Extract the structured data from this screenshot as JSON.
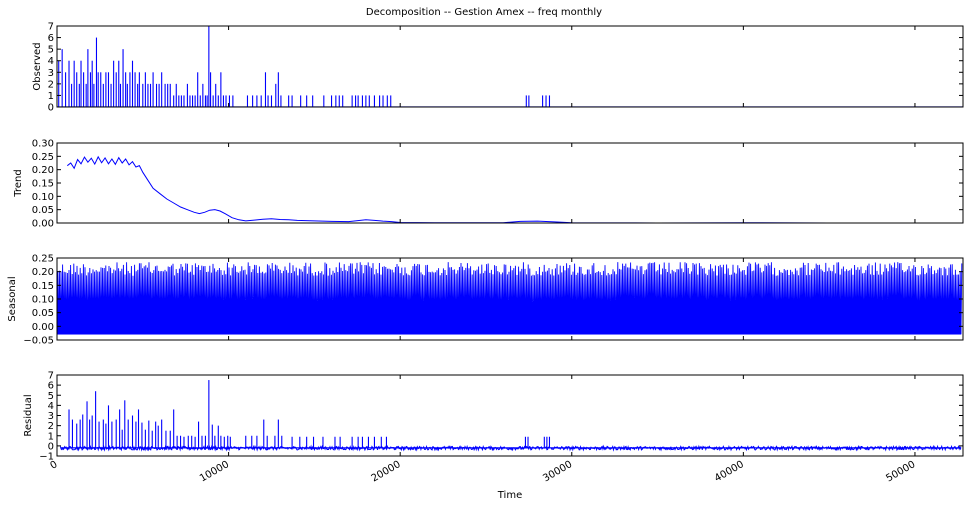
{
  "chart_data": {
    "type": "line",
    "title": "Decomposition -- Gestion Amex -- freq monthly",
    "xlabel": "Time",
    "xlim": [
      0,
      52800
    ],
    "xticks": [
      0,
      10000,
      20000,
      30000,
      40000,
      50000
    ],
    "xtick_labels": [
      "0",
      "10000",
      "20000",
      "30000",
      "40000",
      "50000"
    ],
    "line_color": "#0000ff",
    "panels": [
      {
        "name": "observed",
        "ylabel": "Observed",
        "ylim": [
          0,
          7
        ],
        "yticks": [
          0,
          1,
          2,
          3,
          4,
          5,
          6,
          7
        ],
        "ytick_labels": [
          "0",
          "1",
          "2",
          "3",
          "4",
          "5",
          "6",
          "7"
        ],
        "style": "spikes",
        "baseline": 0,
        "spikes": [
          [
            100,
            4
          ],
          [
            300,
            5
          ],
          [
            500,
            3
          ],
          [
            700,
            4
          ],
          [
            850,
            2
          ],
          [
            1000,
            4
          ],
          [
            1150,
            3
          ],
          [
            1300,
            2
          ],
          [
            1400,
            4
          ],
          [
            1550,
            3
          ],
          [
            1700,
            2
          ],
          [
            1800,
            5
          ],
          [
            1950,
            3
          ],
          [
            2050,
            4
          ],
          [
            2150,
            2
          ],
          [
            2300,
            6
          ],
          [
            2400,
            3
          ],
          [
            2550,
            3
          ],
          [
            2700,
            2
          ],
          [
            2850,
            3
          ],
          [
            3000,
            3
          ],
          [
            3150,
            2
          ],
          [
            3300,
            4
          ],
          [
            3450,
            3
          ],
          [
            3600,
            4
          ],
          [
            3700,
            2
          ],
          [
            3850,
            5
          ],
          [
            4000,
            3
          ],
          [
            4100,
            2
          ],
          [
            4250,
            3
          ],
          [
            4400,
            4
          ],
          [
            4550,
            3
          ],
          [
            4700,
            2
          ],
          [
            4800,
            3
          ],
          [
            5000,
            2
          ],
          [
            5150,
            3
          ],
          [
            5300,
            2
          ],
          [
            5450,
            2
          ],
          [
            5600,
            3
          ],
          [
            5800,
            2
          ],
          [
            5950,
            2
          ],
          [
            6100,
            3
          ],
          [
            6300,
            2
          ],
          [
            6450,
            2
          ],
          [
            6600,
            2
          ],
          [
            6800,
            1
          ],
          [
            6950,
            2
          ],
          [
            7100,
            1
          ],
          [
            7250,
            1
          ],
          [
            7400,
            1
          ],
          [
            7600,
            2
          ],
          [
            7750,
            1
          ],
          [
            7900,
            1
          ],
          [
            8050,
            1
          ],
          [
            8200,
            3
          ],
          [
            8350,
            1
          ],
          [
            8500,
            2
          ],
          [
            8650,
            1
          ],
          [
            8750,
            1
          ],
          [
            8850,
            7
          ],
          [
            8950,
            3
          ],
          [
            9100,
            1
          ],
          [
            9250,
            2
          ],
          [
            9400,
            1
          ],
          [
            9550,
            3
          ],
          [
            9700,
            1
          ],
          [
            9850,
            1
          ],
          [
            10050,
            1
          ],
          [
            10250,
            1
          ],
          [
            11100,
            1
          ],
          [
            11400,
            1
          ],
          [
            11650,
            1
          ],
          [
            11900,
            1
          ],
          [
            12150,
            3
          ],
          [
            12300,
            1
          ],
          [
            12500,
            1
          ],
          [
            12750,
            2
          ],
          [
            12900,
            3
          ],
          [
            13050,
            1
          ],
          [
            13500,
            1
          ],
          [
            13700,
            1
          ],
          [
            14200,
            1
          ],
          [
            14550,
            1
          ],
          [
            14900,
            1
          ],
          [
            15550,
            1
          ],
          [
            16000,
            1
          ],
          [
            16250,
            1
          ],
          [
            16450,
            1
          ],
          [
            16650,
            1
          ],
          [
            17200,
            1
          ],
          [
            17400,
            1
          ],
          [
            17550,
            1
          ],
          [
            17800,
            1
          ],
          [
            18000,
            1
          ],
          [
            18200,
            1
          ],
          [
            18500,
            1
          ],
          [
            18800,
            1
          ],
          [
            19000,
            1
          ],
          [
            19250,
            1
          ],
          [
            19450,
            1
          ],
          [
            27350,
            1
          ],
          [
            27500,
            1
          ],
          [
            28300,
            1
          ],
          [
            28500,
            1
          ],
          [
            28700,
            1
          ]
        ]
      },
      {
        "name": "trend",
        "ylabel": "Trend",
        "ylim": [
          0,
          0.3
        ],
        "yticks": [
          0,
          0.05,
          0.1,
          0.15,
          0.2,
          0.25,
          0.3
        ],
        "ytick_labels": [
          "0.00",
          "0.05",
          "0.10",
          "0.15",
          "0.20",
          "0.25",
          "0.30"
        ],
        "style": "line",
        "x": [
          600,
          800,
          1000,
          1200,
          1400,
          1600,
          1800,
          2000,
          2200,
          2400,
          2600,
          2800,
          3000,
          3200,
          3400,
          3600,
          3800,
          4000,
          4200,
          4400,
          4600,
          4800,
          5000,
          5300,
          5600,
          6000,
          6400,
          6800,
          7200,
          7600,
          8000,
          8300,
          8600,
          8900,
          9200,
          9500,
          9800,
          10200,
          10600,
          11000,
          11500,
          12000,
          12500,
          13000,
          13500,
          14000,
          15000,
          16000,
          17000,
          18000,
          18500,
          19000,
          19500,
          20000,
          22000,
          24000,
          26000,
          27000,
          28000,
          29000,
          30000,
          35000,
          40000,
          45000,
          50000,
          52700
        ],
        "y": [
          0.215,
          0.225,
          0.205,
          0.238,
          0.222,
          0.247,
          0.228,
          0.243,
          0.221,
          0.248,
          0.226,
          0.244,
          0.222,
          0.24,
          0.22,
          0.245,
          0.225,
          0.24,
          0.218,
          0.23,
          0.21,
          0.215,
          0.19,
          0.16,
          0.13,
          0.11,
          0.09,
          0.075,
          0.06,
          0.05,
          0.04,
          0.035,
          0.04,
          0.048,
          0.05,
          0.045,
          0.035,
          0.02,
          0.012,
          0.008,
          0.011,
          0.014,
          0.016,
          0.013,
          0.012,
          0.01,
          0.008,
          0.006,
          0.005,
          0.012,
          0.01,
          0.007,
          0.005,
          0.002,
          0.001,
          0.001,
          0.001,
          0.006,
          0.007,
          0.004,
          0.001,
          0.0,
          0.001,
          0.0,
          0.0,
          0.0
        ]
      },
      {
        "name": "seasonal",
        "ylabel": "Seasonal",
        "ylim": [
          -0.05,
          0.25
        ],
        "yticks": [
          -0.05,
          0,
          0.05,
          0.1,
          0.15,
          0.2,
          0.25
        ],
        "ytick_labels": [
          "−0.05",
          "0.00",
          "0.05",
          "0.10",
          "0.15",
          "0.20",
          "0.25"
        ],
        "style": "band",
        "band_min": -0.03,
        "band_max": 0.235,
        "band_dense_low": -0.03,
        "band_dense_high": 0.09,
        "xrange": [
          0,
          52700
        ]
      },
      {
        "name": "residual",
        "ylabel": "Residual",
        "ylim": [
          -1,
          7
        ],
        "yticks": [
          -1,
          0,
          1,
          2,
          3,
          4,
          5,
          6,
          7
        ],
        "ytick_labels": [
          "−1",
          "0",
          "1",
          "2",
          "3",
          "4",
          "5",
          "6",
          "7"
        ],
        "style": "spikes",
        "baseline": -0.2,
        "noise_range": [
          -0.4,
          -0.05
        ],
        "noise_xrange": [
          200,
          52700
        ],
        "spikes": [
          [
            700,
            3.6
          ],
          [
            900,
            2.6
          ],
          [
            1150,
            2.2
          ],
          [
            1350,
            2.6
          ],
          [
            1500,
            3.1
          ],
          [
            1750,
            4.4
          ],
          [
            1900,
            2.6
          ],
          [
            2050,
            3.0
          ],
          [
            2250,
            5.4
          ],
          [
            2450,
            2.4
          ],
          [
            2700,
            2.6
          ],
          [
            2850,
            2.2
          ],
          [
            3000,
            4.0
          ],
          [
            3200,
            2.4
          ],
          [
            3450,
            2.6
          ],
          [
            3650,
            3.6
          ],
          [
            3800,
            1.6
          ],
          [
            3950,
            4.5
          ],
          [
            4150,
            2.6
          ],
          [
            4400,
            3.0
          ],
          [
            4600,
            2.4
          ],
          [
            4750,
            3.6
          ],
          [
            4950,
            2.3
          ],
          [
            5150,
            1.6
          ],
          [
            5350,
            2.5
          ],
          [
            5550,
            1.5
          ],
          [
            5750,
            2.4
          ],
          [
            5900,
            2.0
          ],
          [
            6100,
            2.6
          ],
          [
            6350,
            1.5
          ],
          [
            6600,
            1.5
          ],
          [
            6800,
            3.6
          ],
          [
            7000,
            1.0
          ],
          [
            7200,
            1.0
          ],
          [
            7400,
            0.9
          ],
          [
            7650,
            1.0
          ],
          [
            7850,
            1.0
          ],
          [
            8050,
            0.9
          ],
          [
            8250,
            2.4
          ],
          [
            8450,
            1.0
          ],
          [
            8650,
            1.0
          ],
          [
            8850,
            6.5
          ],
          [
            9050,
            2.1
          ],
          [
            9200,
            1.0
          ],
          [
            9400,
            2.0
          ],
          [
            9550,
            1.0
          ],
          [
            9750,
            0.9
          ],
          [
            9950,
            1.0
          ],
          [
            10100,
            0.9
          ],
          [
            11000,
            1.0
          ],
          [
            11350,
            1.0
          ],
          [
            11650,
            1.0
          ],
          [
            12050,
            2.6
          ],
          [
            12250,
            1.0
          ],
          [
            12700,
            1.0
          ],
          [
            12900,
            2.6
          ],
          [
            13100,
            1.0
          ],
          [
            13700,
            0.9
          ],
          [
            14150,
            0.9
          ],
          [
            14550,
            0.9
          ],
          [
            14950,
            0.9
          ],
          [
            15500,
            0.9
          ],
          [
            16200,
            0.9
          ],
          [
            16500,
            0.9
          ],
          [
            17200,
            0.9
          ],
          [
            17550,
            0.9
          ],
          [
            17800,
            0.9
          ],
          [
            18150,
            0.9
          ],
          [
            18500,
            0.9
          ],
          [
            18900,
            0.9
          ],
          [
            19200,
            0.9
          ],
          [
            27300,
            0.9
          ],
          [
            27450,
            0.9
          ],
          [
            28400,
            0.9
          ],
          [
            28550,
            0.9
          ],
          [
            28700,
            0.9
          ]
        ]
      }
    ]
  }
}
